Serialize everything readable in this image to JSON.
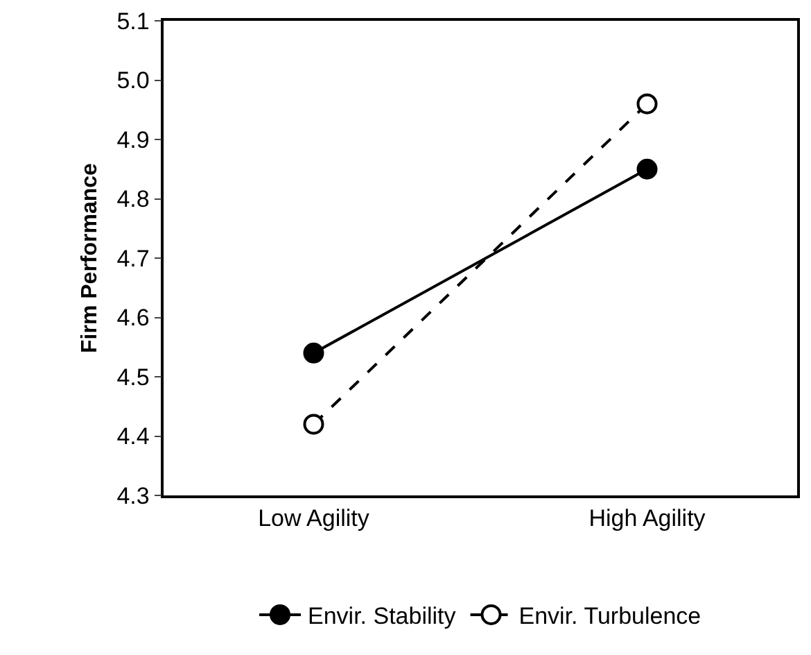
{
  "chart_data": {
    "type": "line",
    "ylabel": "Firm Performance",
    "categories": [
      "Low Agility",
      "High Agility"
    ],
    "series": [
      {
        "name": "Envir. Stability",
        "color": "#000000",
        "values": [
          4.54,
          4.85
        ],
        "line_style": "solid"
      },
      {
        "name": "Envir. Turbulence",
        "color": "#000000",
        "values": [
          4.42,
          4.96
        ],
        "line_style": "dashed"
      }
    ],
    "ylim": [
      4.3,
      5.1
    ],
    "yticks": [
      {
        "value": 4.3,
        "label": "4.3"
      },
      {
        "value": 4.4,
        "label": "4.4"
      },
      {
        "value": 4.5,
        "label": "4.5"
      },
      {
        "value": 4.6,
        "label": "4.6"
      },
      {
        "value": 4.7,
        "label": "4.7"
      },
      {
        "value": 4.8,
        "label": "4.8"
      },
      {
        "value": 4.9,
        "label": "4.9"
      },
      {
        "value": 5.0,
        "label": "5.0"
      },
      {
        "value": 5.1,
        "label": "5.1"
      }
    ],
    "grid": false,
    "legend": "bottom",
    "marker": "circle"
  }
}
